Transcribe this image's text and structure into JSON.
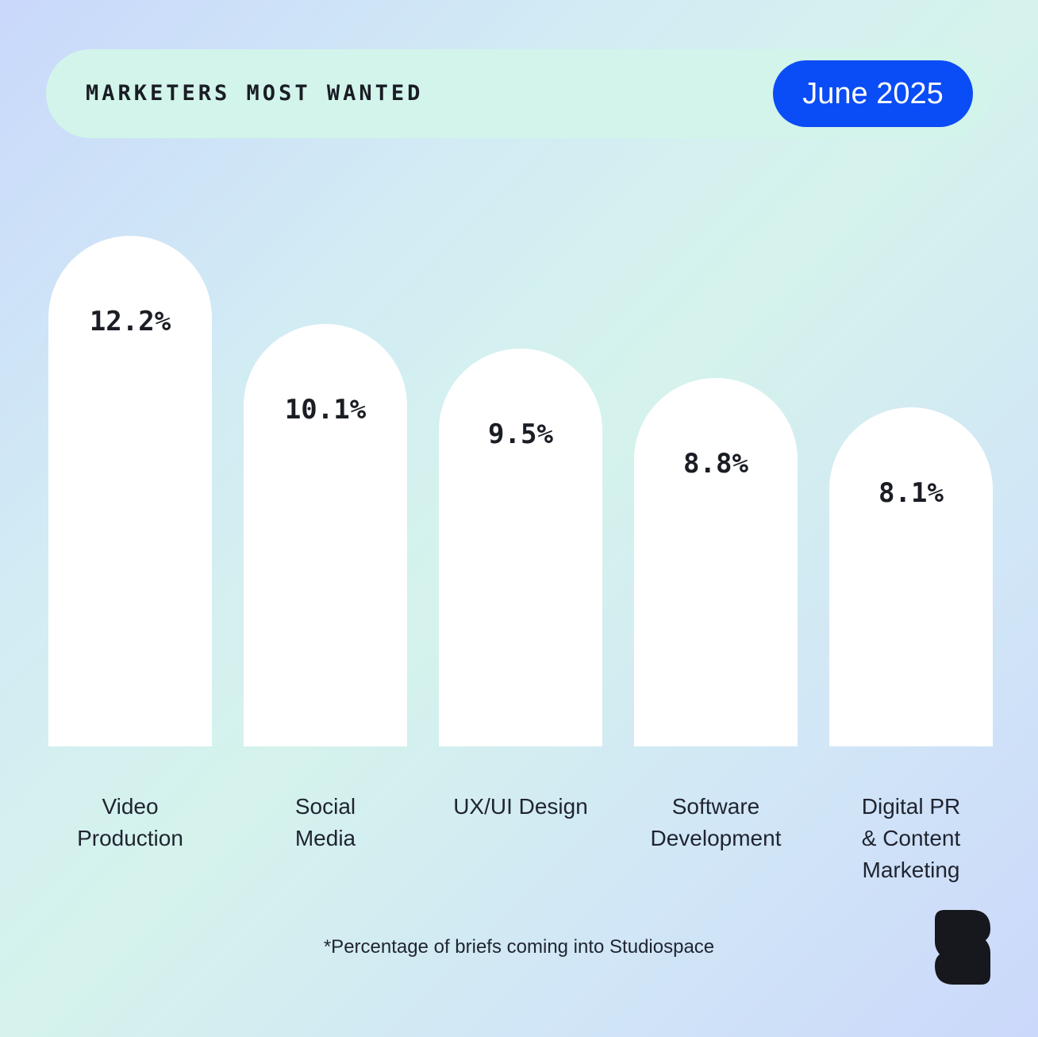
{
  "header": {
    "title": "MARKETERS MOST WANTED",
    "date": "June 2025"
  },
  "chart_data": {
    "type": "bar",
    "categories": [
      "Video\nProduction",
      "Social\nMedia",
      "UX/UI Design",
      "Software\nDevelopment",
      "Digital PR\n& Content\nMarketing"
    ],
    "values": [
      12.2,
      10.1,
      9.5,
      8.8,
      8.1
    ],
    "value_labels": [
      "12.2%",
      "10.1%",
      "9.5%",
      "8.8%",
      "8.1%"
    ],
    "title": "",
    "xlabel": "",
    "ylabel": ""
  },
  "footnote": "*Percentage of briefs coming into Studiospace",
  "colors": {
    "accent": "#0a4cf5",
    "bar": "#ffffff",
    "header_bg": "#d2f4eb",
    "text": "#1a1d24"
  },
  "logo": "studiospace-logo-icon"
}
